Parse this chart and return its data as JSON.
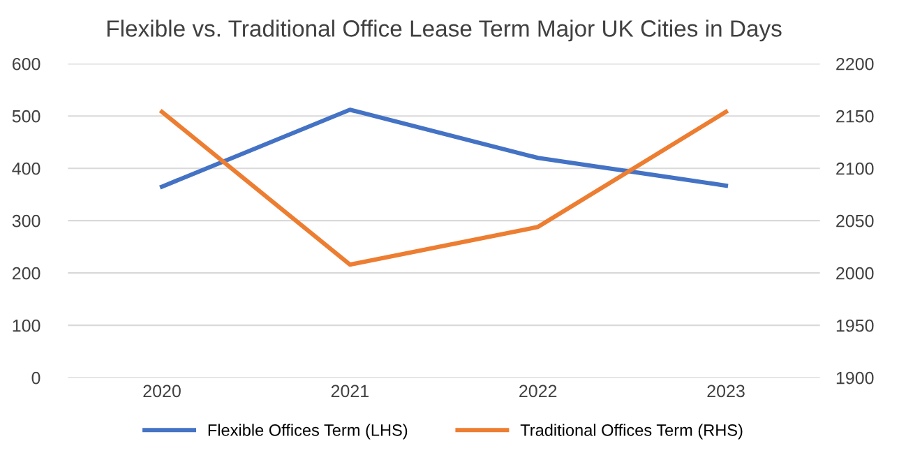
{
  "chart_data": {
    "type": "line",
    "title": "Flexible vs. Traditional Office Lease Term Major UK Cities in Days",
    "categories": [
      "2020",
      "2021",
      "2022",
      "2023"
    ],
    "series": [
      {
        "name": "Flexible Offices Term (LHS)",
        "color": "#4472c4",
        "values": [
          365,
          512,
          420,
          367
        ]
      },
      {
        "name": "Traditional Offices Term (RHS)",
        "color": "#ed7d31",
        "values": [
          2154,
          2008,
          2044,
          2154
        ],
        "axis": "y2"
      }
    ],
    "ylim": [
      0,
      600
    ],
    "yticks": [
      0,
      100,
      200,
      300,
      400,
      500,
      600
    ],
    "y2lim": [
      1900,
      2200
    ],
    "y2ticks": [
      1900,
      1950,
      2000,
      2050,
      2100,
      2150,
      2200
    ],
    "grid": "y",
    "legend": "bottom",
    "marker": "none",
    "line_style": "solid"
  }
}
